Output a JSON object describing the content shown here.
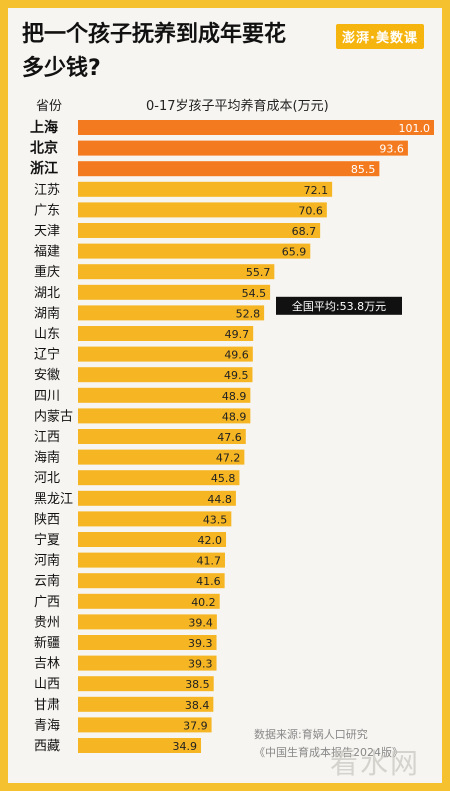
{
  "header": {
    "title_line1": "把一个孩子抚养到成年要花",
    "title_line2": "多少钱?",
    "logo": "澎湃·美数课",
    "col_province": "省份",
    "col_chart": "0-17岁孩子平均养育成本(万元)"
  },
  "footer": {
    "source_line1": "数据来源:育娲人口研究",
    "source_line2": "《中国生育成本报告2024版》",
    "watermark": "看水网"
  },
  "colors": {
    "highlight": "#f47a1f",
    "bar": "#f6b623",
    "avg_box": "#111111"
  },
  "chart_data": {
    "type": "bar",
    "orientation": "horizontal",
    "categories": [
      "上海",
      "北京",
      "浙江",
      "江苏",
      "广东",
      "天津",
      "福建",
      "重庆",
      "湖北",
      "湖南",
      "山东",
      "辽宁",
      "安徽",
      "四川",
      "内蒙古",
      "江西",
      "海南",
      "河北",
      "黑龙江",
      "陕西",
      "宁夏",
      "河南",
      "云南",
      "广西",
      "贵州",
      "新疆",
      "吉林",
      "山西",
      "甘肃",
      "青海",
      "西藏"
    ],
    "values": [
      101.0,
      93.6,
      85.5,
      72.1,
      70.6,
      68.7,
      65.9,
      55.7,
      54.5,
      52.8,
      49.7,
      49.6,
      49.5,
      48.9,
      48.9,
      47.6,
      47.2,
      45.8,
      44.8,
      43.5,
      42.0,
      41.7,
      41.6,
      40.2,
      39.4,
      39.3,
      39.3,
      38.5,
      38.4,
      37.9,
      34.9
    ],
    "highlighted": [
      "上海",
      "北京",
      "浙江"
    ],
    "average_label": "全国平均:53.8万元",
    "xlabel": "0-17岁孩子平均养育成本(万元)"
  }
}
